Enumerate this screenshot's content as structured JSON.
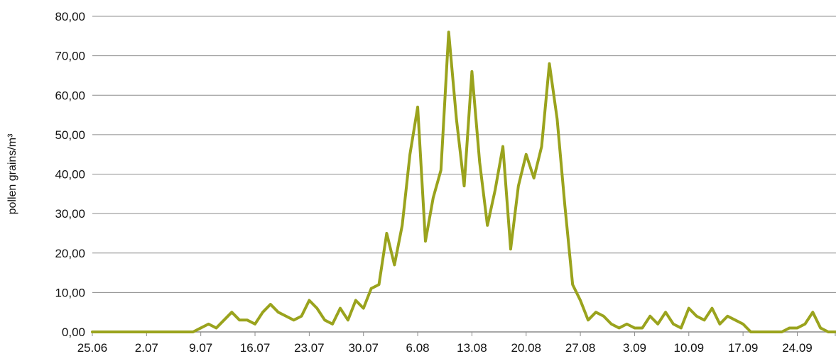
{
  "chart_data": {
    "type": "line",
    "title": "",
    "xlabel": "",
    "ylabel": "pollen grains/m³",
    "ylim": [
      0,
      80
    ],
    "yticks": [
      "0,00",
      "10,00",
      "20,00",
      "30,00",
      "40,00",
      "50,00",
      "60,00",
      "70,00",
      "80,00"
    ],
    "xticks": [
      "25.06",
      "2.07",
      "9.07",
      "16.07",
      "23.07",
      "30.07",
      "6.08",
      "13.08",
      "20.08",
      "27.08",
      "3.09",
      "10.09",
      "17.09",
      "24.09"
    ],
    "grid": "horizontal",
    "legend": "none",
    "line_color": "#9aa31d",
    "series": [
      {
        "x_start": "25.06",
        "x_step_days": 1,
        "values": [
          0,
          0,
          0,
          0,
          0,
          0,
          0,
          0,
          0,
          0,
          0,
          0,
          0,
          0,
          1,
          2,
          1,
          3,
          5,
          3,
          3,
          2,
          5,
          7,
          5,
          4,
          3,
          4,
          8,
          6,
          3,
          2,
          6,
          3,
          8,
          6,
          11,
          12,
          25,
          17,
          27,
          45,
          57,
          23,
          34,
          41,
          76,
          54,
          37,
          66,
          43,
          27,
          36,
          47,
          21,
          37,
          45,
          39,
          47,
          68,
          54,
          32,
          12,
          8,
          3,
          5,
          4,
          2,
          1,
          2,
          1,
          1,
          4,
          2,
          5,
          2,
          1,
          6,
          4,
          3,
          6,
          2,
          4,
          3,
          2,
          0,
          0,
          0,
          0,
          0,
          1,
          1,
          2,
          5,
          1,
          0,
          0
        ]
      }
    ]
  }
}
